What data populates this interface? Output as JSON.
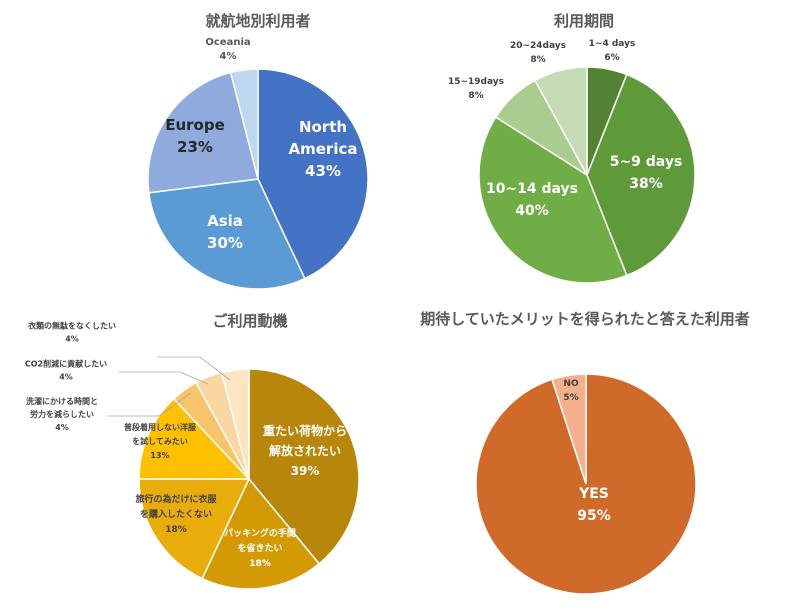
{
  "chart_data": [
    {
      "type": "pie",
      "title": "就航地別利用者",
      "slices": [
        {
          "label": [
            "North",
            "America"
          ],
          "value": 43,
          "text": "43%",
          "color": "#4472c4"
        },
        {
          "label": [
            "Asia"
          ],
          "value": 30,
          "text": "30%",
          "color": "#5b9bd5"
        },
        {
          "label": [
            "Europe"
          ],
          "value": 23,
          "text": "23%",
          "color": "#8faadc"
        },
        {
          "label": [
            "Oceania"
          ],
          "value": 4,
          "text": "4%",
          "color": "#bdd7ee"
        }
      ]
    },
    {
      "type": "pie",
      "title": "利用期間",
      "slices": [
        {
          "label": [
            "1~4 days"
          ],
          "value": 6,
          "text": "6%",
          "color": "#548235"
        },
        {
          "label": [
            "5~9 days"
          ],
          "value": 38,
          "text": "38%",
          "color": "#5e9a3a"
        },
        {
          "label": [
            "10~14 days"
          ],
          "value": 40,
          "text": "40%",
          "color": "#70ad47"
        },
        {
          "label": [
            "15~19days"
          ],
          "value": 8,
          "text": "8%",
          "color": "#a9cc91"
        },
        {
          "label": [
            "20~24days"
          ],
          "value": 8,
          "text": "8%",
          "color": "#c5dbb5"
        }
      ]
    },
    {
      "type": "pie",
      "title": "ご利用動機",
      "slices": [
        {
          "label": [
            "重たい荷物から",
            "解放されたい"
          ],
          "value": 39,
          "text": "39%",
          "color": "#b8860b"
        },
        {
          "label": [
            "パッキングの手間",
            "を省きたい"
          ],
          "value": 18,
          "text": "18%",
          "color": "#d49a06"
        },
        {
          "label": [
            "旅行の為だけに衣服",
            "を購入したくない"
          ],
          "value": 18,
          "text": "18%",
          "color": "#e8ac0c"
        },
        {
          "label": [
            "普段着用しない洋服",
            "を試してみたい"
          ],
          "value": 13,
          "text": "13%",
          "color": "#ffc000"
        },
        {
          "label": [
            "洗濯にかける時間と",
            "労力を減らしたい"
          ],
          "value": 4,
          "text": "4%",
          "color": "#f6c46b"
        },
        {
          "label": [
            "CO2削減に貢献したい"
          ],
          "value": 4,
          "text": "4%",
          "color": "#fad7a0"
        },
        {
          "label": [
            "衣類の無駄をなくしたい"
          ],
          "value": 4,
          "text": "4%",
          "color": "#fde5c1"
        }
      ]
    },
    {
      "type": "pie",
      "title": "期待していたメリットを得られたと答えた利用者",
      "slices": [
        {
          "label": [
            "YES"
          ],
          "value": 95,
          "text": "95%",
          "color": "#d06a2a"
        },
        {
          "label": [
            "NO"
          ],
          "value": 5,
          "text": "5%",
          "color": "#f4b08d"
        }
      ]
    }
  ]
}
